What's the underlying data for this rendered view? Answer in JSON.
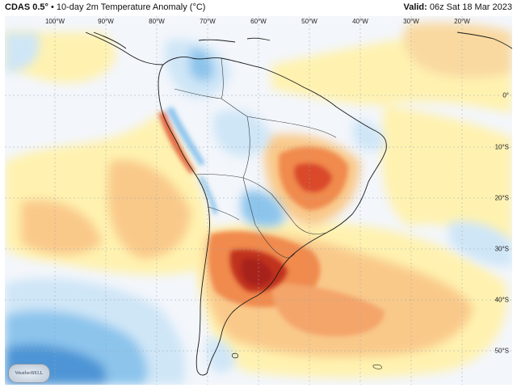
{
  "header": {
    "model": "CDAS 0.5°",
    "separator": "•",
    "product": "10-day 2m Temperature Anomaly (°C)",
    "valid_label": "Valid:",
    "valid_time": "06z Sat 18 Mar 2023"
  },
  "lon_labels": [
    "100°W",
    "90°W",
    "80°W",
    "70°W",
    "60°W",
    "50°W",
    "40°W",
    "30°W",
    "20°W"
  ],
  "lat_labels": [
    "0°",
    "10°S",
    "20°S",
    "30°S",
    "40°S",
    "50°S"
  ],
  "logo_text": "WeatherBELL",
  "colors": {
    "warm_light": "#fff2b0",
    "warm_mid": "#f9c98a",
    "warm_strong": "#f08a4e",
    "hot": "#d9482a",
    "hot_core": "#a8201a",
    "cool_light": "#cfe6f7",
    "cool_mid": "#8cc4ec",
    "cool_strong": "#4d95d6",
    "neutral": "#f3f6fb",
    "coast": "#1a1a1a"
  }
}
